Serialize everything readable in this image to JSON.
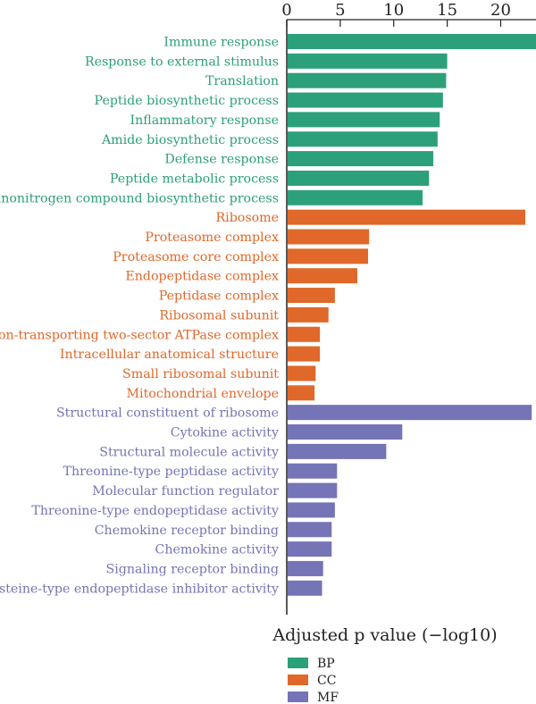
{
  "chart_data": {
    "type": "bar",
    "orientation": "horizontal",
    "xlabel": "Adjusted p value (−log10)",
    "xlim": [
      0,
      23.3
    ],
    "xticks": [
      0,
      5,
      10,
      15,
      20
    ],
    "x_axis_position": "top",
    "grid": false,
    "legend_position": "bottom-left",
    "groups": [
      {
        "name": "BP",
        "color": "#2ca07a"
      },
      {
        "name": "CC",
        "color": "#e0682a"
      },
      {
        "name": "MF",
        "color": "#7474b6"
      }
    ],
    "categories": [
      "Immune response",
      "Response to external stimulus",
      "Translation",
      "Peptide biosynthetic process",
      "Inflammatory response",
      "Amide biosynthetic process",
      "Defense response",
      "Peptide metabolic process",
      "Organonitrogen compound biosynthetic process",
      "Ribosome",
      "Proteasome complex",
      "Proteasome core complex",
      "Endopeptidase complex",
      "Peptidase complex",
      "Ribosomal subunit",
      "Proton-transporting two-sector ATPase complex",
      "Intracellular anatomical structure",
      "Small ribosomal subunit",
      "Mitochondrial envelope",
      "Structural constituent of ribosome",
      "Cytokine activity",
      "Structural molecule activity",
      "Threonine-type peptidase activity",
      "Molecular function regulator",
      "Threonine-type endopeptidase activity",
      "Chemokine receptor binding",
      "Chemokine activity",
      "Signaling receptor binding",
      "Cysteine-type endopeptidase inhibitor activity"
    ],
    "values": [
      23.3,
      15.0,
      14.9,
      14.6,
      14.3,
      14.1,
      13.7,
      13.3,
      12.7,
      22.3,
      7.7,
      7.6,
      6.6,
      4.5,
      3.9,
      3.1,
      3.1,
      2.7,
      2.6,
      22.9,
      10.8,
      9.3,
      4.7,
      4.7,
      4.5,
      4.2,
      4.2,
      3.4,
      3.3
    ],
    "group_of_bar": [
      "BP",
      "BP",
      "BP",
      "BP",
      "BP",
      "BP",
      "BP",
      "BP",
      "BP",
      "CC",
      "CC",
      "CC",
      "CC",
      "CC",
      "CC",
      "CC",
      "CC",
      "CC",
      "CC",
      "MF",
      "MF",
      "MF",
      "MF",
      "MF",
      "MF",
      "MF",
      "MF",
      "MF",
      "MF"
    ]
  }
}
